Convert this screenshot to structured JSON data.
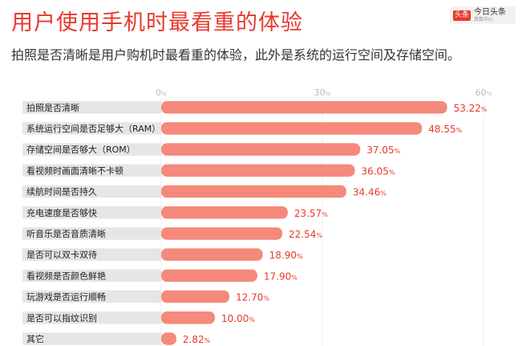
{
  "header": {
    "title": "用户使用手机时最看重的体验",
    "subtitle": "拍照是否清晰是用户购机时最看重的体验，此外是系统的运行空间及存储空间。"
  },
  "logo": {
    "mark": "头条",
    "name": "今日头条",
    "sub": "算数中心"
  },
  "colors": {
    "bar": "#f5897b",
    "track": "#e6e6e6",
    "title": "#e8382c",
    "value_label": "#e8382c"
  },
  "chart_data": {
    "type": "bar",
    "orientation": "horizontal",
    "categories": [
      "拍照是否清晰",
      "系统运行空间是否足够大（RAM）",
      "存储空间是否够大（ROM）",
      "看视频时画面清晰不卡顿",
      "续航时间是否持久",
      "充电速度是否够快",
      "听音乐是否音质清晰",
      "是否可以双卡双待",
      "看视频是否颜色鲜艳",
      "玩游戏是否运行顺畅",
      "是否可以指纹识别",
      "其它"
    ],
    "values": [
      53.22,
      48.55,
      37.05,
      36.05,
      34.46,
      23.57,
      22.54,
      18.9,
      17.9,
      12.7,
      10.0,
      2.82
    ],
    "value_labels": [
      "53.22",
      "48.55",
      "37.05",
      "36.05",
      "34.46",
      "23.57",
      "22.54",
      "18.90",
      "17.90",
      "12.70",
      "10.00",
      "2.82"
    ],
    "value_suffix": "%",
    "xlim": [
      0,
      60
    ],
    "ticks": [
      0,
      30,
      60
    ],
    "tick_labels": [
      "0",
      "30",
      "60"
    ],
    "tick_suffix": "%",
    "grid": true
  }
}
